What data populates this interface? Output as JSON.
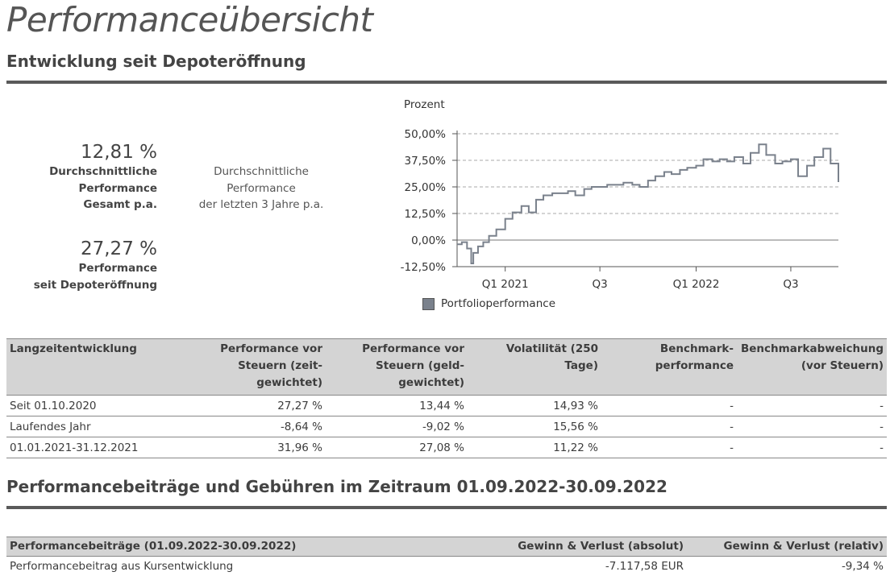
{
  "page": {
    "title": "Performanceübersicht",
    "section1": "Entwicklung seit Depoteröffnung",
    "section2": "Performancebeiträge und Gebühren im Zeitraum 01.09.2022-30.09.2022"
  },
  "kpis": {
    "avg_total_value": "12,81 %",
    "avg_total_label": [
      "Durchschnittliche",
      "Performance",
      "Gesamt p.a."
    ],
    "avg3y_label": [
      "Durchschnittliche",
      "Performance",
      "der letzten 3 Jahre p.a."
    ],
    "since_open_value": "27,27 %",
    "since_open_label": [
      "Performance",
      "seit Depoteröffnung"
    ]
  },
  "chart_data": {
    "type": "line",
    "ylabel": "Prozent",
    "ylim": [
      -12.5,
      50
    ],
    "yticks": [
      "50,00%",
      "37,50%",
      "25,00%",
      "12,50%",
      "0,00%",
      "-12,50%"
    ],
    "ytick_values": [
      50,
      37.5,
      25,
      12.5,
      0,
      -12.5
    ],
    "xticks": [
      "Q1 2021",
      "Q3",
      "Q1 2022",
      "Q3"
    ],
    "xtick_dates": [
      "2021-01-01",
      "2021-07-01",
      "2022-01-01",
      "2022-07-01"
    ],
    "xlim": [
      "2020-10-01",
      "2022-09-30"
    ],
    "grid": "horizontal-dashed",
    "color": "#7a818c",
    "series": [
      {
        "name": "Portfolioperformance",
        "x": [
          "2020-10-01",
          "2020-10-10",
          "2020-10-20",
          "2020-10-28",
          "2020-11-01",
          "2020-11-10",
          "2020-11-20",
          "2020-12-01",
          "2020-12-15",
          "2021-01-01",
          "2021-01-15",
          "2021-02-01",
          "2021-02-15",
          "2021-03-01",
          "2021-03-15",
          "2021-04-01",
          "2021-04-15",
          "2021-05-01",
          "2021-05-15",
          "2021-06-01",
          "2021-06-15",
          "2021-07-01",
          "2021-07-15",
          "2021-08-01",
          "2021-08-15",
          "2021-09-01",
          "2021-09-15",
          "2021-10-01",
          "2021-10-15",
          "2021-11-01",
          "2021-11-15",
          "2021-12-01",
          "2021-12-15",
          "2022-01-01",
          "2022-01-15",
          "2022-02-01",
          "2022-02-15",
          "2022-03-01",
          "2022-03-15",
          "2022-04-01",
          "2022-04-15",
          "2022-05-01",
          "2022-05-15",
          "2022-06-01",
          "2022-06-15",
          "2022-07-01",
          "2022-07-15",
          "2022-08-01",
          "2022-08-15",
          "2022-09-01",
          "2022-09-15",
          "2022-09-30"
        ],
        "y": [
          -2,
          -1,
          -4,
          -11,
          -6,
          -3,
          -1,
          2,
          5,
          10,
          13,
          16,
          13,
          19,
          21,
          22,
          22,
          23,
          21,
          24,
          25,
          25,
          26,
          26,
          27,
          26,
          25,
          28,
          30,
          32,
          31,
          33,
          34,
          35,
          38,
          37,
          38,
          37,
          39,
          36,
          41,
          45,
          40,
          36,
          37,
          38,
          30,
          35,
          39,
          43,
          36,
          27.27
        ]
      }
    ]
  },
  "perf_table": {
    "headers": [
      [
        "Langzeitentwicklung"
      ],
      [
        "Performance vor",
        "Steuern (zeit-",
        "gewichtet)"
      ],
      [
        "Performance vor",
        "Steuern (geld-",
        "gewichtet)"
      ],
      [
        "Volatilität (250 Tage)"
      ],
      [
        "Benchmark-",
        "performance"
      ],
      [
        "Benchmarkabweichung",
        "(vor Steuern)"
      ]
    ],
    "rows": [
      [
        "Seit 01.10.2020",
        "27,27 %",
        "13,44 %",
        "14,93 %",
        "-",
        "-"
      ],
      [
        "Laufendes Jahr",
        "-8,64 %",
        "-9,02 %",
        "15,56 %",
        "-",
        "-"
      ],
      [
        "01.01.2021-31.12.2021",
        "31,96 %",
        "27,08 %",
        "11,22 %",
        "-",
        "-"
      ]
    ]
  },
  "contrib_table": {
    "headers": [
      "Performancebeiträge (01.09.2022-30.09.2022)",
      "Gewinn & Verlust (absolut)",
      "Gewinn & Verlust (relativ)"
    ],
    "rows": [
      [
        "Performancebeitrag aus Kursentwicklung",
        "-7.117,58 EUR",
        "-9,34 %"
      ]
    ]
  }
}
